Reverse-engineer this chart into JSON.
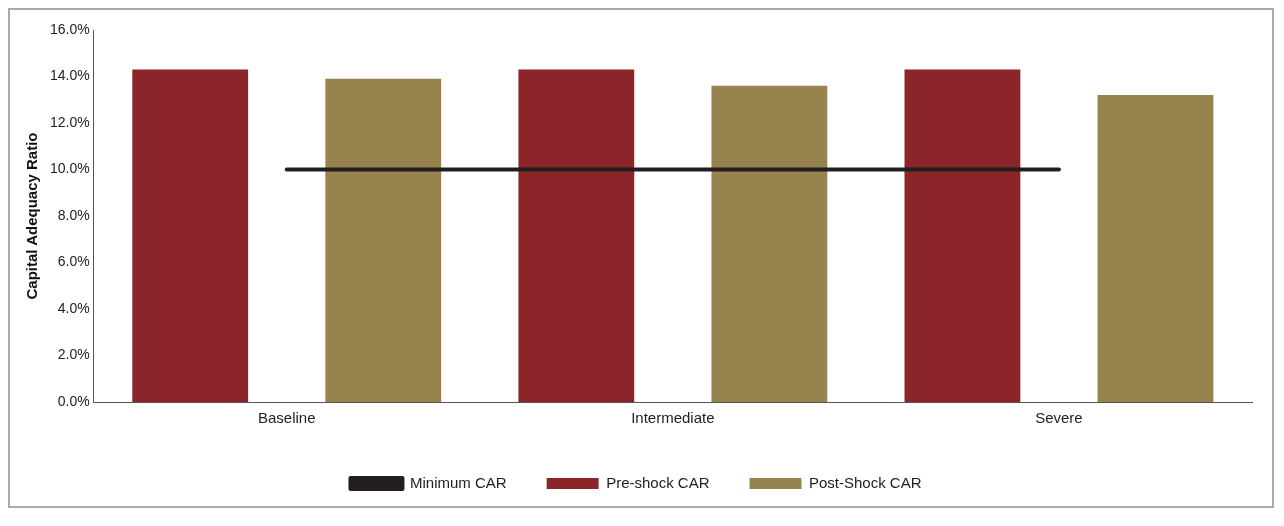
{
  "chart_data": {
    "type": "bar",
    "ylabel": "Capital Adequacy Ratio",
    "categories": [
      "Baseline",
      "Intermediate",
      "Severe"
    ],
    "series": [
      {
        "name": "Pre-shock CAR",
        "color": "#8b2529",
        "values": [
          14.3,
          14.3,
          14.3
        ]
      },
      {
        "name": "Post-Shock CAR",
        "color": "#97834d",
        "values": [
          13.9,
          13.6,
          13.2
        ]
      },
      {
        "name": "Minimum CAR",
        "type": "line",
        "color": "#231f20",
        "values": [
          10,
          10,
          10
        ]
      }
    ],
    "ylim": [
      0,
      16
    ],
    "yticks": [
      {
        "value": 0,
        "label": "0.0%"
      },
      {
        "value": 2,
        "label": "2.0%"
      },
      {
        "value": 4,
        "label": "4.0%"
      },
      {
        "value": 6,
        "label": "6.0%"
      },
      {
        "value": 8,
        "label": "8.0%"
      },
      {
        "value": 10,
        "label": "10.0%"
      },
      {
        "value": 12,
        "label": "12.0%"
      },
      {
        "value": 14,
        "label": "14.0%"
      },
      {
        "value": 16,
        "label": "16.0%"
      }
    ],
    "grid": false,
    "legend": "bottom",
    "marker": "none"
  }
}
